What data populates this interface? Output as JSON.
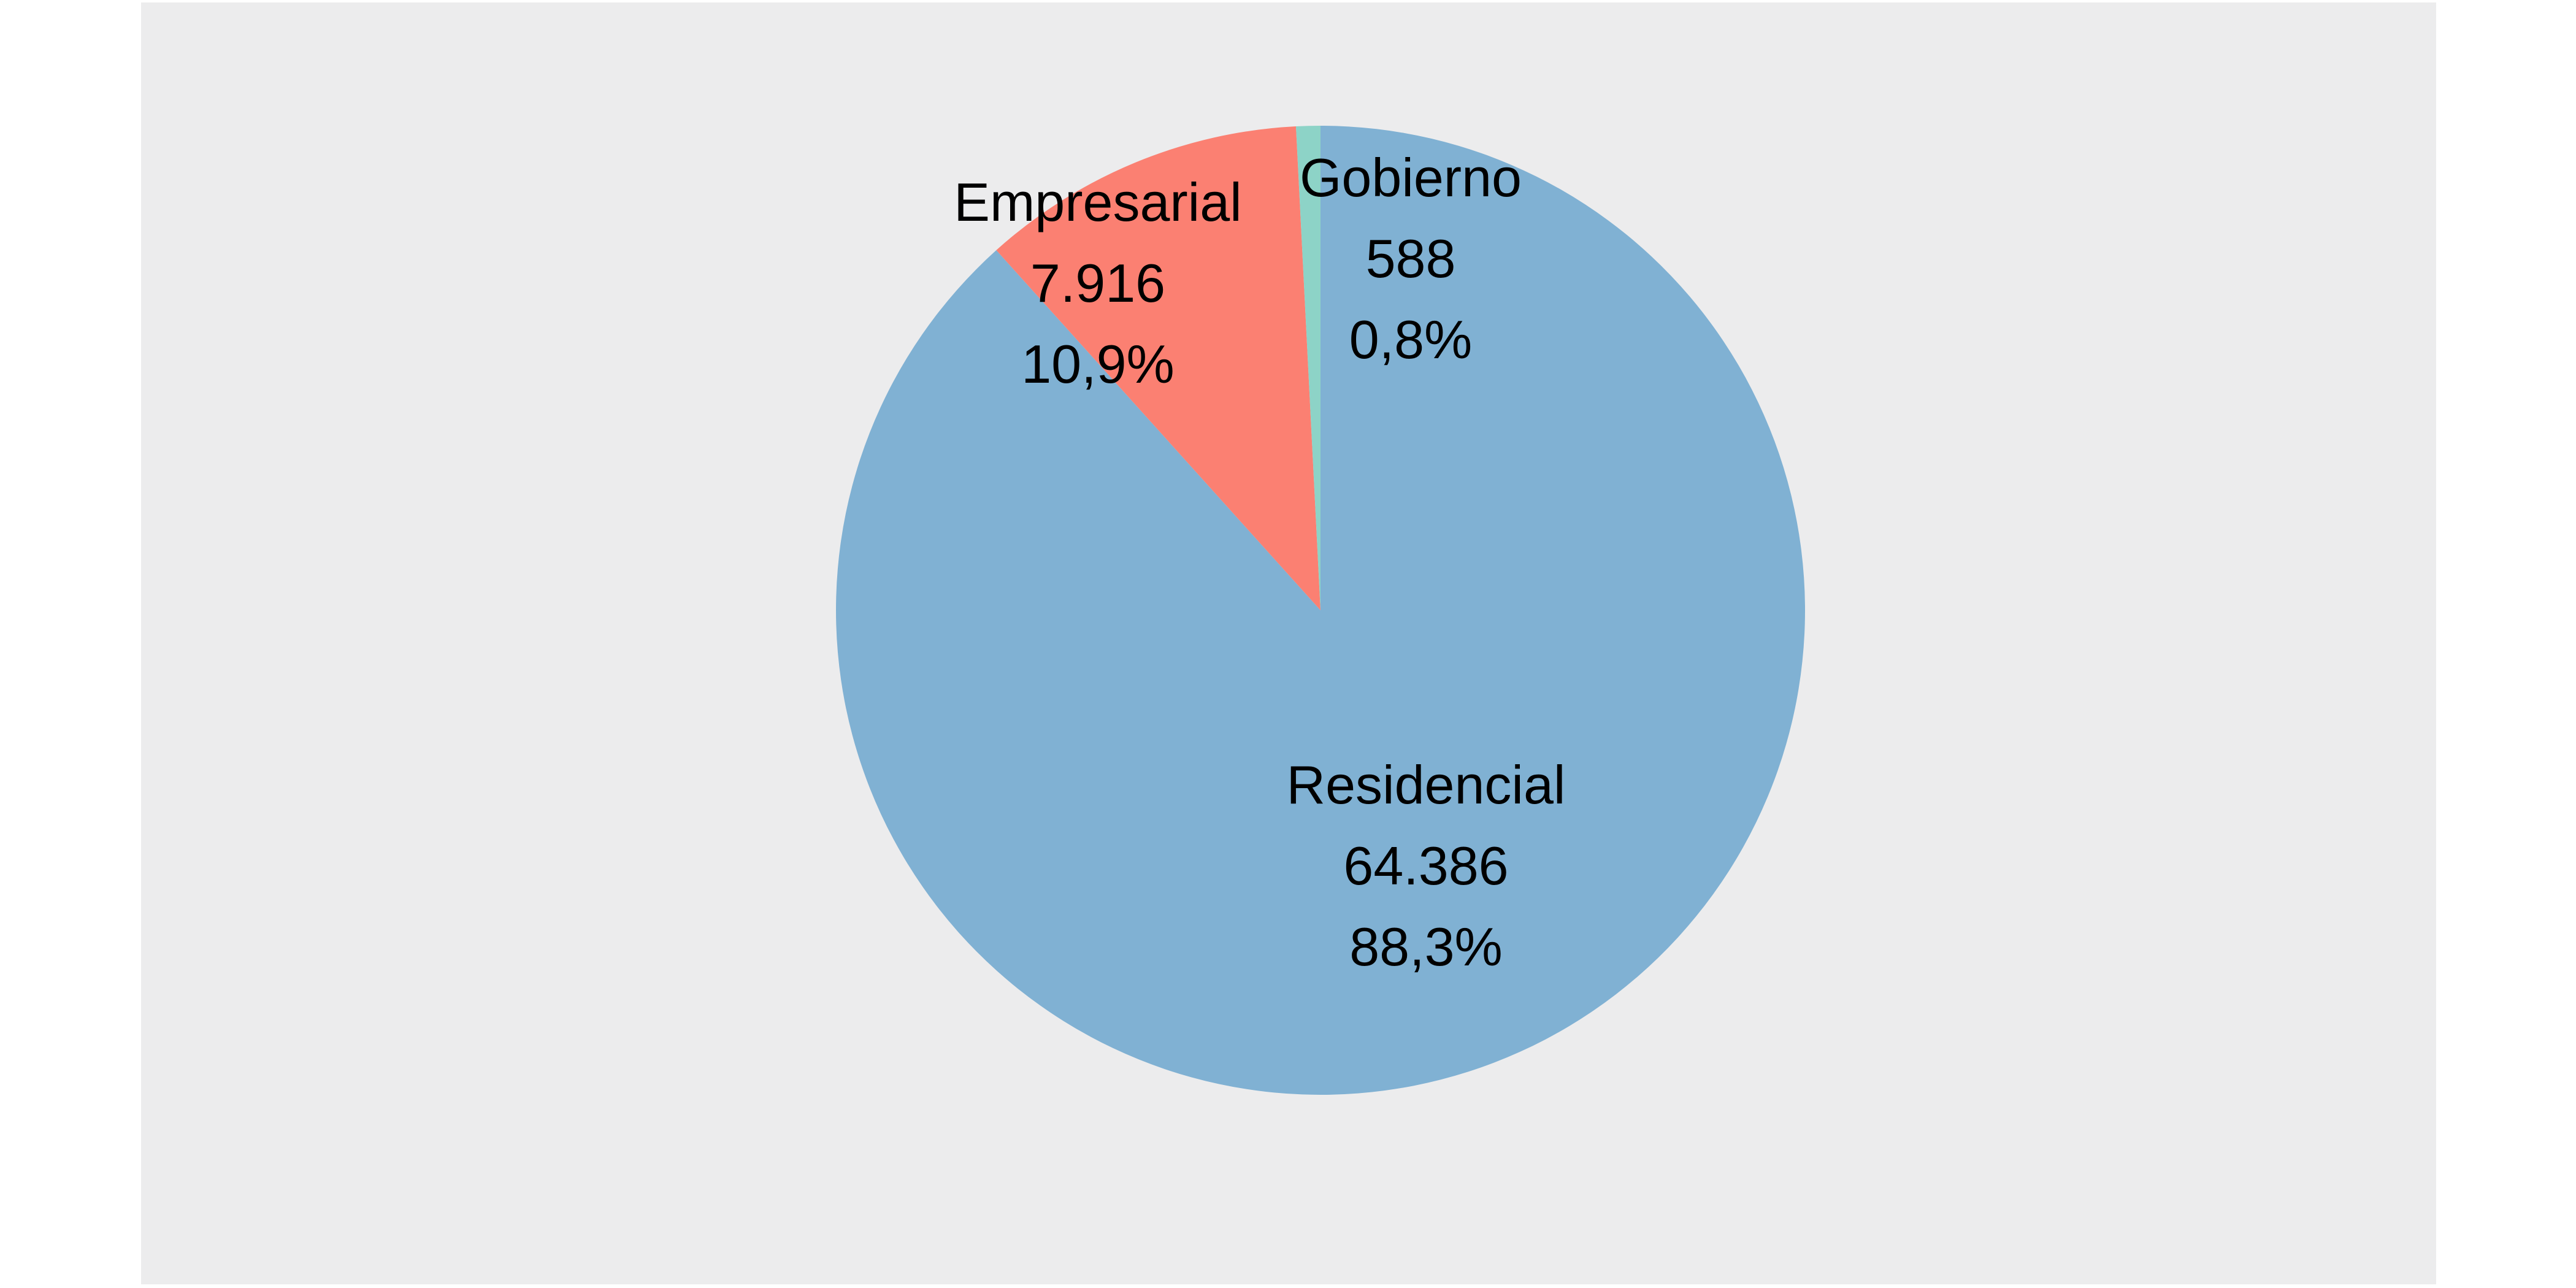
{
  "chart_data": {
    "type": "pie",
    "title": "",
    "slices": [
      {
        "label": "Residencial",
        "value": 64386,
        "value_label": "64.386",
        "percent": 88.3,
        "percent_label": "88,3%",
        "color": "#80b1d3"
      },
      {
        "label": "Empresarial",
        "value": 7916,
        "value_label": "7.916",
        "percent": 10.9,
        "percent_label": "10,9%",
        "color": "#fb8072"
      },
      {
        "label": "Gobierno",
        "value": 588,
        "value_label": "588",
        "percent": 0.8,
        "percent_label": "0,8%",
        "color": "#8dd3c7"
      }
    ],
    "start": "top",
    "direction": "clockwise",
    "legend": "none",
    "background": "#ececed"
  }
}
